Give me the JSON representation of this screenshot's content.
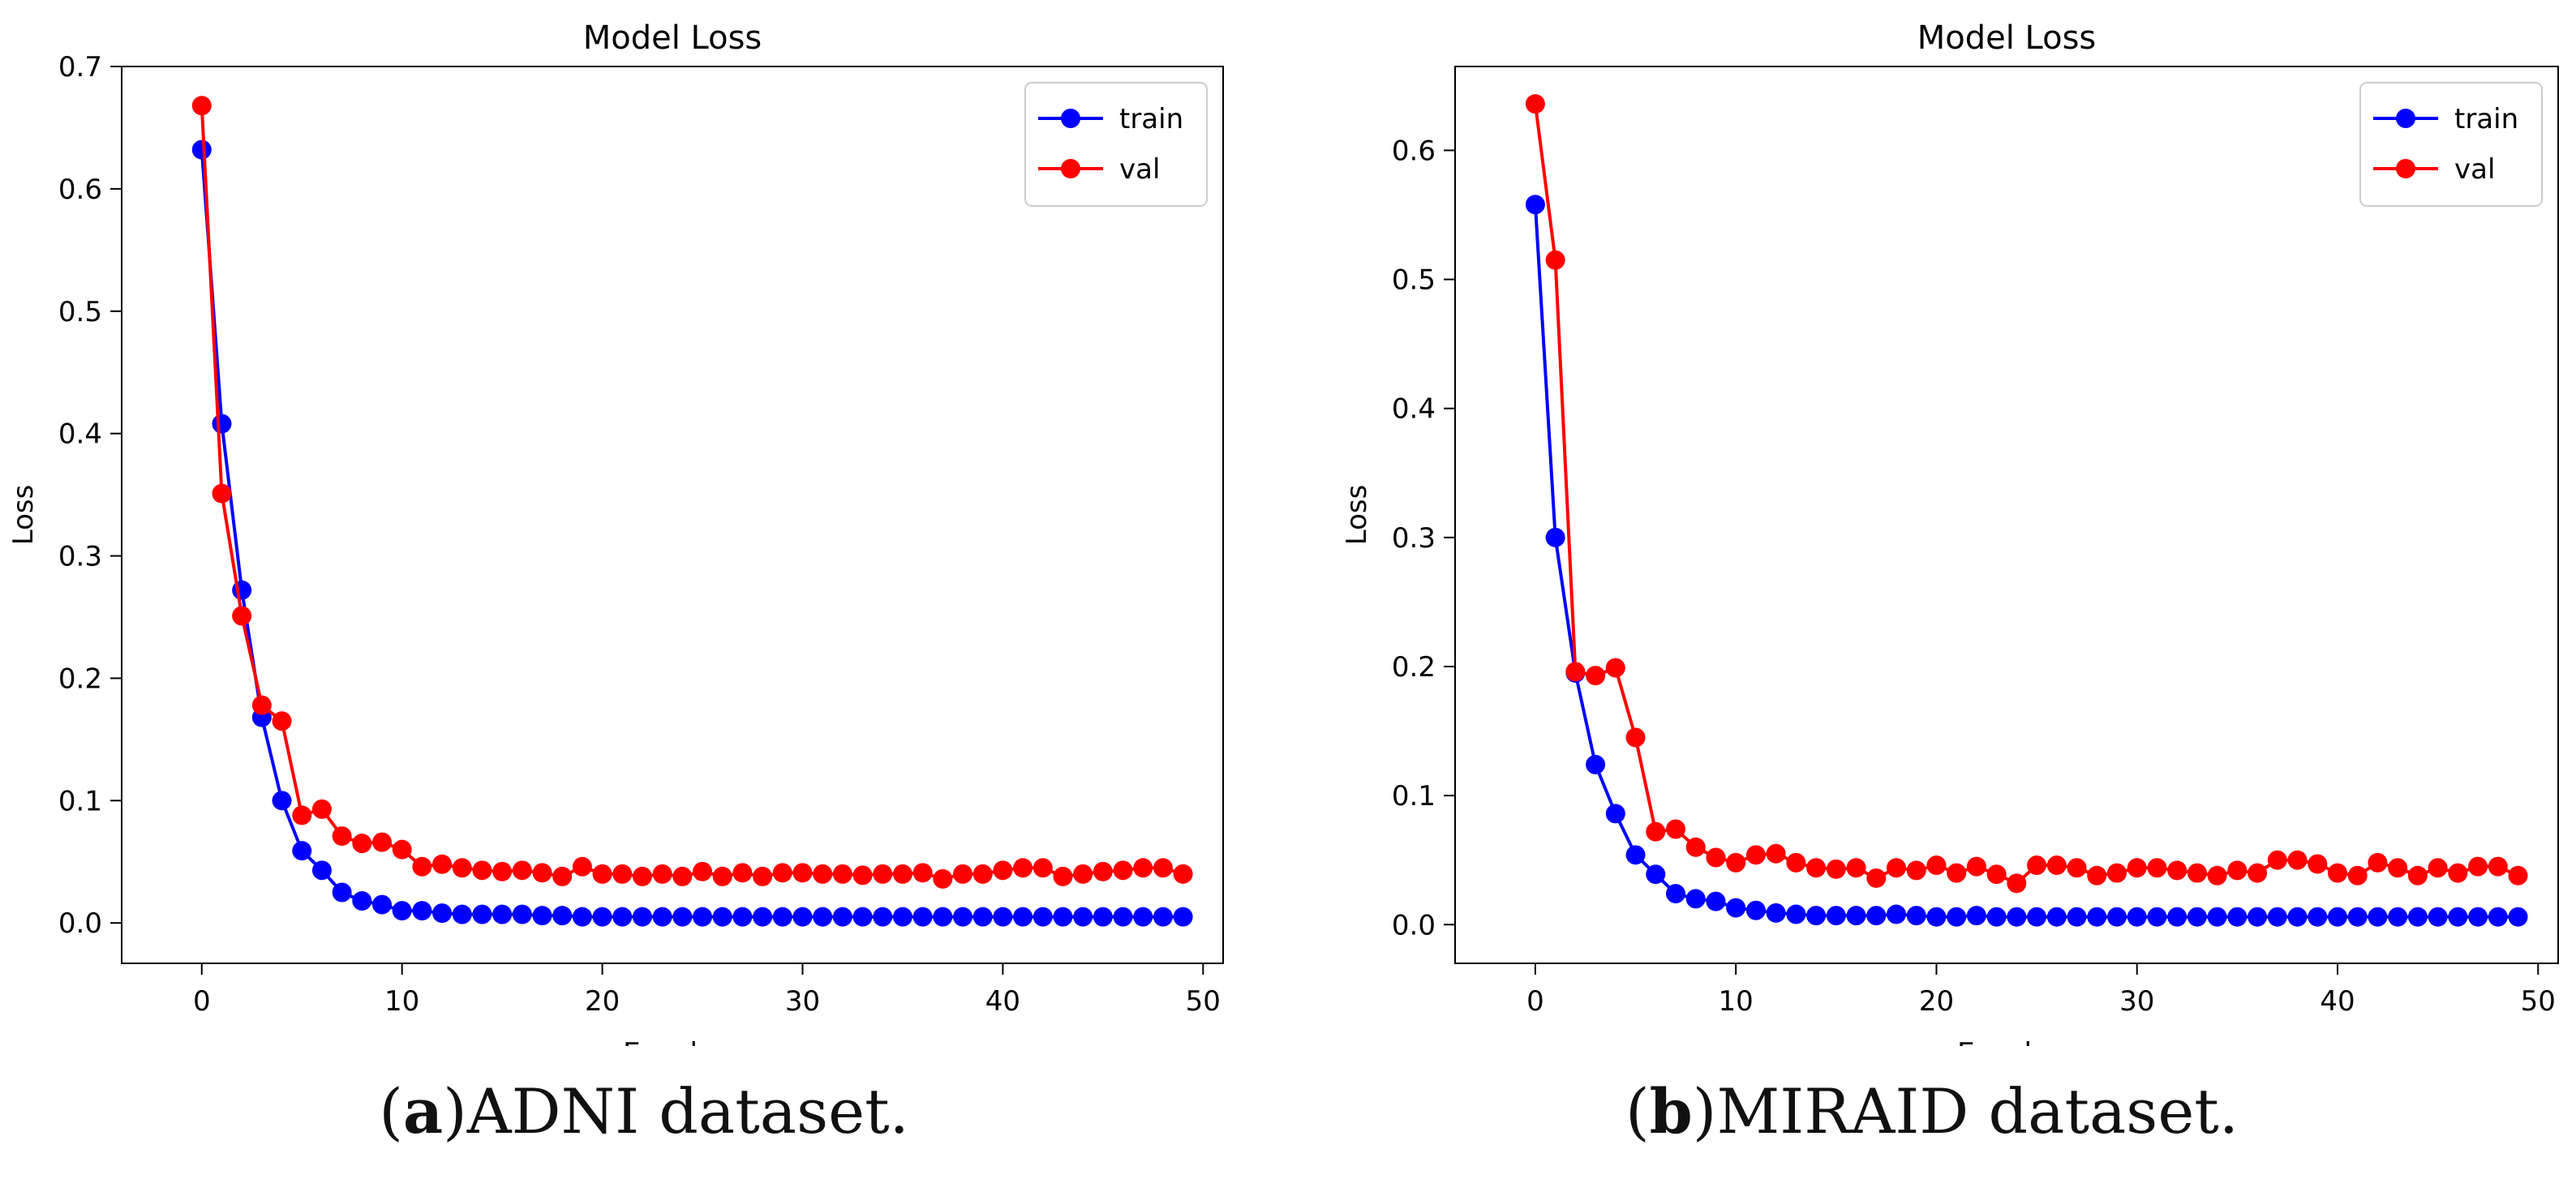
{
  "chart_data": [
    {
      "type": "line",
      "title": "Model Loss",
      "xlabel": "Epochs",
      "ylabel": "Loss",
      "xlim": [
        -4,
        51
      ],
      "ylim": [
        -0.033,
        0.7
      ],
      "xticks": [
        0,
        10,
        20,
        30,
        40,
        50
      ],
      "yticks": [
        0.0,
        0.1,
        0.2,
        0.3,
        0.4,
        0.5,
        0.6,
        0.7
      ],
      "ytick_labels": [
        "0.0",
        "0.1",
        "0.2",
        "0.3",
        "0.4",
        "0.5",
        "0.6",
        "0.7"
      ],
      "legend_position": "top-right",
      "grid": false,
      "series": [
        {
          "name": "train",
          "color": "#0000ff",
          "x": [
            0,
            1,
            2,
            3,
            4,
            5,
            6,
            7,
            8,
            9,
            10,
            11,
            12,
            13,
            14,
            15,
            16,
            17,
            18,
            19,
            20,
            21,
            22,
            23,
            24,
            25,
            26,
            27,
            28,
            29,
            30,
            31,
            32,
            33,
            34,
            35,
            36,
            37,
            38,
            39,
            40,
            41,
            42,
            43,
            44,
            45,
            46,
            47,
            48,
            49
          ],
          "values": [
            0.632,
            0.408,
            0.272,
            0.168,
            0.1,
            0.059,
            0.043,
            0.025,
            0.018,
            0.015,
            0.01,
            0.01,
            0.008,
            0.007,
            0.007,
            0.007,
            0.007,
            0.006,
            0.006,
            0.005,
            0.005,
            0.005,
            0.005,
            0.005,
            0.005,
            0.005,
            0.005,
            0.005,
            0.005,
            0.005,
            0.005,
            0.005,
            0.005,
            0.005,
            0.005,
            0.005,
            0.005,
            0.005,
            0.005,
            0.005,
            0.005,
            0.005,
            0.005,
            0.005,
            0.005,
            0.005,
            0.005,
            0.005,
            0.005,
            0.005
          ]
        },
        {
          "name": "val",
          "color": "#ff0000",
          "x": [
            0,
            1,
            2,
            3,
            4,
            5,
            6,
            7,
            8,
            9,
            10,
            11,
            12,
            13,
            14,
            15,
            16,
            17,
            18,
            19,
            20,
            21,
            22,
            23,
            24,
            25,
            26,
            27,
            28,
            29,
            30,
            31,
            32,
            33,
            34,
            35,
            36,
            37,
            38,
            39,
            40,
            41,
            42,
            43,
            44,
            45,
            46,
            47,
            48,
            49
          ],
          "values": [
            0.668,
            0.351,
            0.251,
            0.178,
            0.165,
            0.088,
            0.093,
            0.071,
            0.065,
            0.066,
            0.06,
            0.046,
            0.048,
            0.045,
            0.043,
            0.042,
            0.043,
            0.041,
            0.038,
            0.046,
            0.04,
            0.04,
            0.038,
            0.04,
            0.038,
            0.042,
            0.038,
            0.041,
            0.038,
            0.041,
            0.041,
            0.04,
            0.04,
            0.039,
            0.04,
            0.04,
            0.041,
            0.036,
            0.04,
            0.04,
            0.043,
            0.045,
            0.045,
            0.038,
            0.04,
            0.042,
            0.043,
            0.045,
            0.045,
            0.04
          ]
        }
      ]
    },
    {
      "type": "line",
      "title": "Model Loss",
      "xlabel": "Epochs",
      "ylabel": "Loss",
      "xlim": [
        -4,
        51
      ],
      "ylim": [
        -0.03,
        0.665
      ],
      "xticks": [
        0,
        10,
        20,
        30,
        40,
        50
      ],
      "yticks": [
        0.0,
        0.1,
        0.2,
        0.3,
        0.4,
        0.5,
        0.6
      ],
      "ytick_labels": [
        "0.0",
        "0.1",
        "0.2",
        "0.3",
        "0.4",
        "0.5",
        "0.6"
      ],
      "legend_position": "top-right",
      "grid": false,
      "series": [
        {
          "name": "train",
          "color": "#0000ff",
          "x": [
            0,
            1,
            2,
            3,
            4,
            5,
            6,
            7,
            8,
            9,
            10,
            11,
            12,
            13,
            14,
            15,
            16,
            17,
            18,
            19,
            20,
            21,
            22,
            23,
            24,
            25,
            26,
            27,
            28,
            29,
            30,
            31,
            32,
            33,
            34,
            35,
            36,
            37,
            38,
            39,
            40,
            41,
            42,
            43,
            44,
            45,
            46,
            47,
            48,
            49
          ],
          "values": [
            0.558,
            0.3,
            0.195,
            0.124,
            0.086,
            0.054,
            0.039,
            0.024,
            0.02,
            0.018,
            0.013,
            0.011,
            0.009,
            0.008,
            0.007,
            0.007,
            0.007,
            0.007,
            0.008,
            0.007,
            0.006,
            0.006,
            0.007,
            0.006,
            0.006,
            0.006,
            0.006,
            0.006,
            0.006,
            0.006,
            0.006,
            0.006,
            0.006,
            0.006,
            0.006,
            0.006,
            0.006,
            0.006,
            0.006,
            0.006,
            0.006,
            0.006,
            0.006,
            0.006,
            0.006,
            0.006,
            0.006,
            0.006,
            0.006,
            0.006
          ]
        },
        {
          "name": "val",
          "color": "#ff0000",
          "x": [
            0,
            1,
            2,
            3,
            4,
            5,
            6,
            7,
            8,
            9,
            10,
            11,
            12,
            13,
            14,
            15,
            16,
            17,
            18,
            19,
            20,
            21,
            22,
            23,
            24,
            25,
            26,
            27,
            28,
            29,
            30,
            31,
            32,
            33,
            34,
            35,
            36,
            37,
            38,
            39,
            40,
            41,
            42,
            43,
            44,
            45,
            46,
            47,
            48,
            49
          ],
          "values": [
            0.636,
            0.515,
            0.196,
            0.193,
            0.199,
            0.145,
            0.072,
            0.074,
            0.06,
            0.052,
            0.048,
            0.054,
            0.055,
            0.048,
            0.044,
            0.043,
            0.044,
            0.036,
            0.044,
            0.042,
            0.046,
            0.04,
            0.045,
            0.039,
            0.032,
            0.046,
            0.046,
            0.044,
            0.038,
            0.04,
            0.044,
            0.044,
            0.042,
            0.04,
            0.038,
            0.042,
            0.04,
            0.05,
            0.05,
            0.047,
            0.04,
            0.038,
            0.048,
            0.044,
            0.038,
            0.044,
            0.04,
            0.045,
            0.045,
            0.038
          ]
        }
      ]
    }
  ],
  "captions": [
    {
      "letter": "a",
      "text": " ADNI dataset."
    },
    {
      "letter": "b",
      "text": " MIRAID dataset."
    }
  ]
}
